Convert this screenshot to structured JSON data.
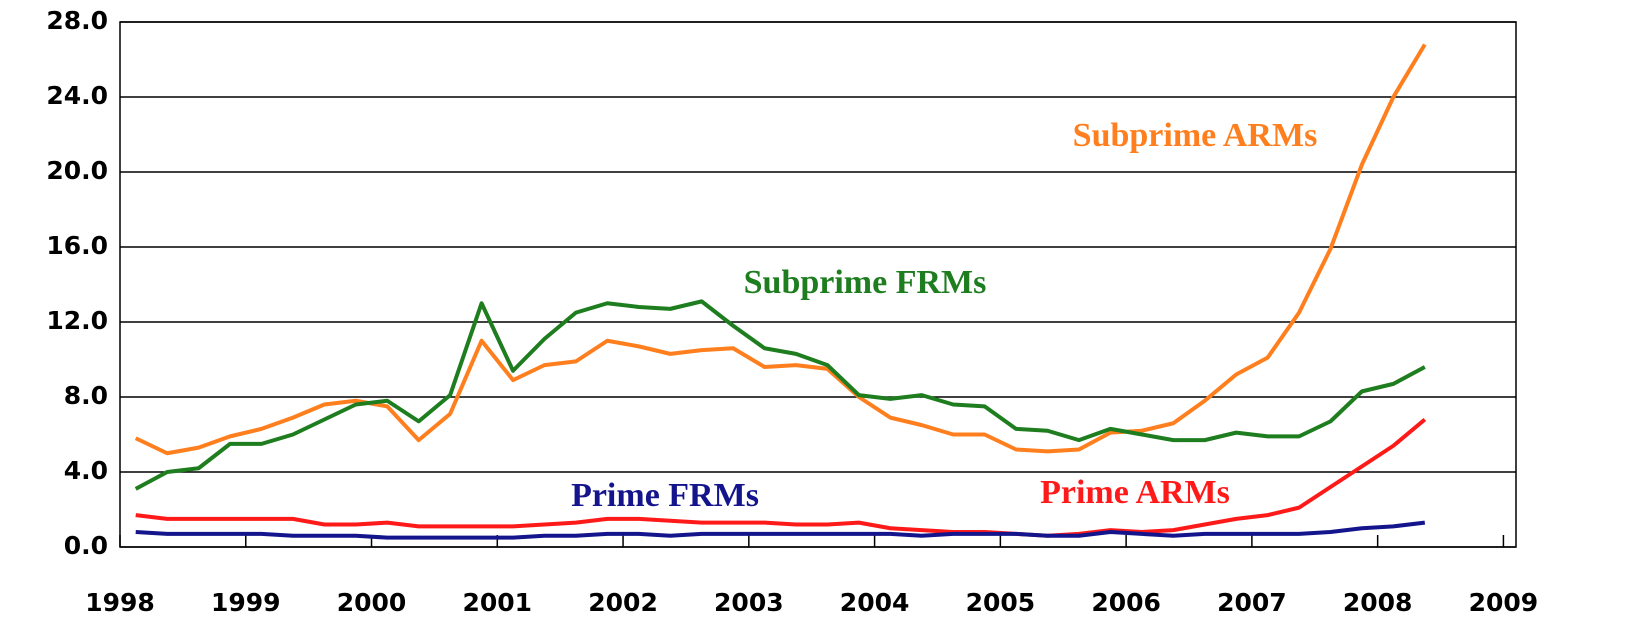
{
  "chart_data": {
    "type": "line",
    "x": [
      1998.125,
      1998.375,
      1998.625,
      1998.875,
      1999.125,
      1999.375,
      1999.625,
      1999.875,
      2000.125,
      2000.375,
      2000.625,
      2000.875,
      2001.125,
      2001.375,
      2001.625,
      2001.875,
      2002.125,
      2002.375,
      2002.625,
      2002.875,
      2003.125,
      2003.375,
      2003.625,
      2003.875,
      2004.125,
      2004.375,
      2004.625,
      2004.875,
      2005.125,
      2005.375,
      2005.625,
      2005.875,
      2006.125,
      2006.375,
      2006.625,
      2006.875,
      2007.125,
      2007.375,
      2007.625,
      2007.875,
      2008.125,
      2008.375
    ],
    "series": [
      {
        "name": "Subprime ARMs",
        "color": "#ff7f1e",
        "values": [
          5.8,
          5.0,
          5.3,
          5.9,
          6.3,
          6.9,
          7.6,
          7.8,
          7.5,
          5.7,
          7.1,
          11.0,
          8.9,
          9.7,
          9.9,
          11.0,
          10.7,
          10.3,
          10.5,
          10.6,
          9.6,
          9.7,
          9.5,
          8.0,
          6.9,
          6.5,
          6.0,
          6.0,
          5.2,
          5.1,
          5.2,
          6.1,
          6.2,
          6.6,
          7.8,
          9.2,
          10.1,
          12.5,
          15.9,
          20.4,
          24.0,
          26.8
        ]
      },
      {
        "name": "Subprime FRMs",
        "color": "#1e7d1e",
        "values": [
          3.1,
          4.0,
          4.2,
          5.5,
          5.5,
          6.0,
          6.8,
          7.6,
          7.8,
          6.7,
          8.1,
          13.0,
          9.4,
          11.1,
          12.5,
          13.0,
          12.8,
          12.7,
          13.1,
          11.8,
          10.6,
          10.3,
          9.7,
          8.1,
          7.9,
          8.1,
          7.6,
          7.5,
          6.3,
          6.2,
          5.7,
          6.3,
          6.0,
          5.7,
          5.7,
          6.1,
          5.9,
          5.9,
          6.7,
          8.3,
          8.7,
          9.6
        ]
      },
      {
        "name": "Prime ARMs",
        "color": "#ff1a1a",
        "values": [
          1.7,
          1.5,
          1.5,
          1.5,
          1.5,
          1.5,
          1.2,
          1.2,
          1.3,
          1.1,
          1.1,
          1.1,
          1.1,
          1.2,
          1.3,
          1.5,
          1.5,
          1.4,
          1.3,
          1.3,
          1.3,
          1.2,
          1.2,
          1.3,
          1.0,
          0.9,
          0.8,
          0.8,
          0.7,
          0.6,
          0.7,
          0.9,
          0.8,
          0.9,
          1.2,
          1.5,
          1.7,
          2.1,
          3.2,
          4.3,
          5.4,
          6.8
        ]
      },
      {
        "name": "Prime FRMs",
        "color": "#14148c",
        "values": [
          0.8,
          0.7,
          0.7,
          0.7,
          0.7,
          0.6,
          0.6,
          0.6,
          0.5,
          0.5,
          0.5,
          0.5,
          0.5,
          0.6,
          0.6,
          0.7,
          0.7,
          0.6,
          0.7,
          0.7,
          0.7,
          0.7,
          0.7,
          0.7,
          0.7,
          0.6,
          0.7,
          0.7,
          0.7,
          0.6,
          0.6,
          0.8,
          0.7,
          0.6,
          0.7,
          0.7,
          0.7,
          0.7,
          0.8,
          1.0,
          1.1,
          1.3
        ]
      }
    ],
    "xlim": [
      1998,
      2009.1
    ],
    "xticks": [
      1998,
      1999,
      2000,
      2001,
      2002,
      2003,
      2004,
      2005,
      2006,
      2007,
      2008,
      2009
    ],
    "ylim": [
      0,
      28
    ],
    "yticks": [
      {
        "value": 0,
        "label": "0.0"
      },
      {
        "value": 4,
        "label": "4.0"
      },
      {
        "value": 8,
        "label": "8.0"
      },
      {
        "value": 12,
        "label": "12.0"
      },
      {
        "value": 16,
        "label": "16.0"
      },
      {
        "value": 20,
        "label": "20.0"
      },
      {
        "value": 24,
        "label": "24.0"
      },
      {
        "value": 28,
        "label": "28.0"
      }
    ],
    "grid": true
  }
}
